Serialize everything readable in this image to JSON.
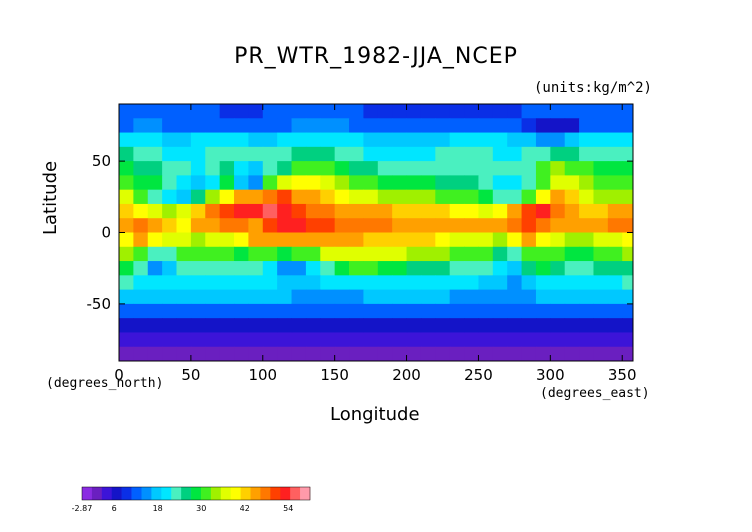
{
  "chart_data": {
    "type": "heatmap",
    "title": "PR_WTR_1982-JJA_NCEP",
    "units_label": "(units:kg/m^2)",
    "xlabel": "Longitude",
    "ylabel": "Latitude",
    "x_units_label": "(degrees_east)",
    "y_units_label": "(degrees_north)",
    "xlim": [
      0,
      357.5
    ],
    "ylim": [
      -90,
      90
    ],
    "xticks": [
      "0",
      "50",
      "100",
      "150",
      "200",
      "250",
      "300",
      "350"
    ],
    "xtick_values": [
      0,
      50,
      100,
      150,
      200,
      250,
      300,
      350
    ],
    "yticks": [
      "50",
      "0",
      "-50"
    ],
    "ytick_values": [
      50,
      0,
      -50
    ],
    "colorbar": {
      "tick_labels": [
        "-2.87",
        "6",
        "18",
        "30",
        "42",
        "54"
      ],
      "min": -2.87,
      "max": 60,
      "colors": [
        "#8a2be2",
        "#6a1fc0",
        "#3c14d8",
        "#1414c8",
        "#0a2fe6",
        "#0060ff",
        "#0090ff",
        "#00c8ff",
        "#00e6ff",
        "#4af0c0",
        "#00d080",
        "#00e640",
        "#40f020",
        "#a0f000",
        "#e0ff00",
        "#ffff00",
        "#ffd000",
        "#ffa000",
        "#ff7800",
        "#ff4000",
        "#ff2020",
        "#ff6060",
        "#ff9aaa"
      ]
    },
    "z_rows": [
      {
        "lat": 85,
        "values": [
          12,
          12,
          12,
          12,
          11,
          11,
          11,
          10,
          10,
          10,
          11,
          11,
          12,
          12,
          12,
          12,
          11,
          10,
          9,
          9,
          9,
          9,
          9,
          9,
          9,
          10,
          10,
          10,
          11,
          11,
          11,
          11,
          11,
          11,
          11,
          11
        ]
      },
      {
        "lat": 75,
        "values": [
          13,
          14,
          14,
          13,
          13,
          12,
          12,
          12,
          12,
          12,
          12,
          13,
          14,
          14,
          14,
          14,
          13,
          12,
          12,
          12,
          12,
          12,
          12,
          13,
          13,
          13,
          12,
          11,
          10,
          6,
          6,
          8,
          11,
          12,
          13,
          13
        ]
      },
      {
        "lat": 65,
        "values": [
          20,
          20,
          19,
          18,
          18,
          19,
          20,
          20,
          19,
          18,
          18,
          19,
          20,
          21,
          21,
          20,
          19,
          18,
          17,
          17,
          17,
          17,
          18,
          19,
          20,
          20,
          19,
          18,
          17,
          15,
          16,
          18,
          19,
          20,
          20,
          20
        ]
      },
      {
        "lat": 55,
        "values": [
          25,
          24,
          22,
          21,
          20,
          21,
          22,
          24,
          24,
          22,
          22,
          24,
          27,
          26,
          25,
          24,
          22,
          21,
          21,
          21,
          21,
          21,
          22,
          23,
          23,
          23,
          21,
          21,
          22,
          24,
          26,
          25,
          24,
          23,
          23,
          24
        ]
      },
      {
        "lat": 45,
        "values": [
          28,
          27,
          26,
          24,
          22,
          21,
          22,
          26,
          20,
          18,
          22,
          26,
          30,
          32,
          31,
          29,
          27,
          25,
          24,
          24,
          24,
          24,
          24,
          24,
          24,
          23,
          22,
          22,
          24,
          30,
          34,
          32,
          30,
          29,
          28,
          28
        ]
      },
      {
        "lat": 35,
        "values": [
          30,
          29,
          28,
          24,
          20,
          18,
          20,
          28,
          18,
          14,
          30,
          36,
          40,
          40,
          38,
          35,
          32,
          30,
          29,
          29,
          29,
          28,
          27,
          26,
          25,
          24,
          21,
          20,
          24,
          30,
          38,
          37,
          34,
          31,
          30,
          30
        ]
      },
      {
        "lat": 25,
        "values": [
          36,
          32,
          24,
          20,
          18,
          26,
          34,
          40,
          44,
          46,
          48,
          50,
          46,
          44,
          42,
          40,
          38,
          36,
          35,
          34,
          34,
          33,
          32,
          31,
          30,
          28,
          24,
          22,
          30,
          40,
          46,
          42,
          38,
          34,
          34,
          35
        ]
      },
      {
        "lat": 15,
        "values": [
          42,
          40,
          36,
          34,
          38,
          42,
          48,
          50,
          52,
          54,
          56,
          52,
          50,
          48,
          47,
          46,
          45,
          44,
          44,
          43,
          43,
          42,
          41,
          40,
          39,
          38,
          40,
          44,
          50,
          52,
          48,
          44,
          42,
          43,
          44,
          45
        ]
      },
      {
        "lat": 5,
        "values": [
          46,
          48,
          44,
          42,
          40,
          44,
          46,
          48,
          48,
          46,
          50,
          52,
          52,
          50,
          50,
          49,
          48,
          47,
          47,
          46,
          46,
          45,
          45,
          44,
          44,
          44,
          46,
          48,
          50,
          48,
          46,
          44,
          44,
          46,
          48,
          47
        ]
      },
      {
        "lat": -5,
        "values": [
          40,
          44,
          40,
          38,
          36,
          34,
          36,
          38,
          40,
          44,
          46,
          46,
          46,
          45,
          45,
          44,
          44,
          43,
          43,
          42,
          42,
          41,
          40,
          38,
          37,
          36,
          34,
          40,
          44,
          40,
          36,
          34,
          34,
          36,
          38,
          40
        ]
      },
      {
        "lat": -15,
        "values": [
          34,
          30,
          24,
          22,
          30,
          32,
          32,
          30,
          28,
          30,
          30,
          28,
          30,
          32,
          36,
          38,
          38,
          38,
          37,
          36,
          35,
          34,
          33,
          32,
          31,
          30,
          27,
          22,
          30,
          32,
          30,
          28,
          28,
          30,
          32,
          33
        ]
      },
      {
        "lat": -25,
        "values": [
          28,
          24,
          16,
          18,
          22,
          24,
          24,
          23,
          22,
          22,
          20,
          14,
          16,
          20,
          24,
          28,
          30,
          30,
          29,
          28,
          27,
          26,
          25,
          24,
          23,
          22,
          20,
          18,
          26,
          28,
          26,
          24,
          24,
          25,
          26,
          27
        ]
      },
      {
        "lat": -35,
        "values": [
          22,
          21,
          20,
          19,
          19,
          19,
          20,
          20,
          20,
          20,
          20,
          18,
          17,
          18,
          19,
          20,
          21,
          21,
          21,
          21,
          20,
          20,
          20,
          19,
          19,
          18,
          18,
          16,
          18,
          20,
          20,
          20,
          20,
          21,
          21,
          22
        ]
      },
      {
        "lat": -45,
        "values": [
          17,
          17,
          17,
          17,
          17,
          17,
          17,
          17,
          17,
          17,
          17,
          17,
          16,
          16,
          16,
          16,
          16,
          17,
          17,
          17,
          17,
          17,
          17,
          16,
          16,
          16,
          16,
          14,
          16,
          17,
          17,
          17,
          17,
          17,
          17,
          17
        ]
      },
      {
        "lat": -55,
        "values": [
          12,
          12,
          12,
          12,
          12,
          12,
          12,
          12,
          12,
          12,
          12,
          12,
          12,
          12,
          12,
          12,
          12,
          12,
          12,
          12,
          12,
          12,
          12,
          12,
          12,
          12,
          12,
          11,
          12,
          12,
          12,
          12,
          12,
          12,
          12,
          12
        ]
      },
      {
        "lat": -65,
        "values": [
          8,
          8,
          8,
          8,
          8,
          8,
          8,
          8,
          8,
          8,
          8,
          8,
          8,
          8,
          8,
          8,
          8,
          8,
          8,
          8,
          8,
          8,
          8,
          8,
          8,
          8,
          8,
          8,
          8,
          8,
          8,
          8,
          8,
          8,
          8,
          8
        ]
      },
      {
        "lat": -75,
        "values": [
          4,
          4,
          4,
          3,
          3,
          3,
          3,
          3,
          3,
          3,
          3,
          3,
          3,
          4,
          4,
          4,
          4,
          4,
          4,
          4,
          4,
          4,
          4,
          4,
          4,
          4,
          4,
          4,
          4,
          4,
          4,
          4,
          4,
          4,
          4,
          4
        ]
      },
      {
        "lat": -85,
        "values": [
          1,
          1,
          1,
          1,
          1,
          1,
          1,
          1,
          1,
          1,
          1,
          1,
          1,
          1,
          1,
          1,
          1,
          1,
          1,
          1,
          1,
          1,
          1,
          1,
          1,
          1,
          1,
          1,
          1,
          1,
          1,
          1,
          1,
          1,
          1,
          1
        ]
      }
    ]
  }
}
